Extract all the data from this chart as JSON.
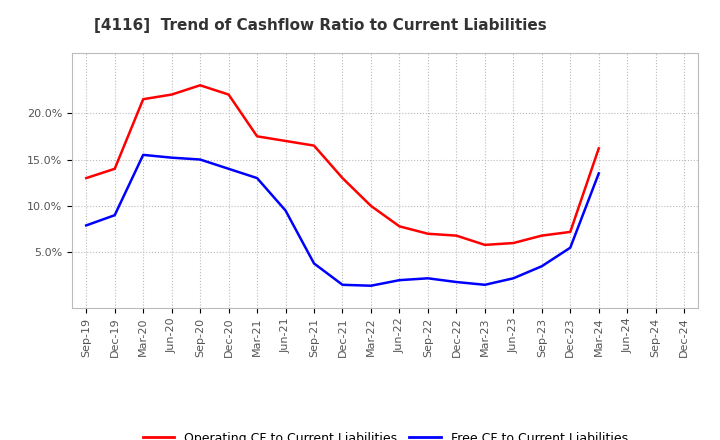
{
  "title": "[4116]  Trend of Cashflow Ratio to Current Liabilities",
  "x_labels": [
    "Sep-19",
    "Dec-19",
    "Mar-20",
    "Jun-20",
    "Sep-20",
    "Dec-20",
    "Mar-21",
    "Jun-21",
    "Sep-21",
    "Dec-21",
    "Mar-22",
    "Jun-22",
    "Sep-22",
    "Dec-22",
    "Mar-23",
    "Jun-23",
    "Sep-23",
    "Dec-23",
    "Mar-24",
    "Jun-24",
    "Sep-24",
    "Dec-24"
  ],
  "operating_cf": [
    0.13,
    0.14,
    0.215,
    0.22,
    0.23,
    0.22,
    0.175,
    0.17,
    0.165,
    0.13,
    0.1,
    0.078,
    0.07,
    0.068,
    0.058,
    0.06,
    0.068,
    0.072,
    0.162,
    null,
    null,
    null
  ],
  "free_cf": [
    0.079,
    0.09,
    0.155,
    0.152,
    0.15,
    0.14,
    0.13,
    0.095,
    0.038,
    0.015,
    0.014,
    0.02,
    0.022,
    0.018,
    0.015,
    0.022,
    0.035,
    0.055,
    0.135,
    null,
    null,
    null
  ],
  "operating_color": "#ff0000",
  "free_color": "#0000ff",
  "ylim": [
    -0.01,
    0.265
  ],
  "yticks": [
    0.05,
    0.1,
    0.15,
    0.2
  ],
  "ytick_labels": [
    "5.0%",
    "10.0%",
    "15.0%",
    "20.0%"
  ],
  "background_color": "#ffffff",
  "grid_color": "#bbbbbb",
  "legend_op": "Operating CF to Current Liabilities",
  "legend_free": "Free CF to Current Liabilities",
  "title_fontsize": 11,
  "tick_fontsize": 8,
  "legend_fontsize": 9
}
